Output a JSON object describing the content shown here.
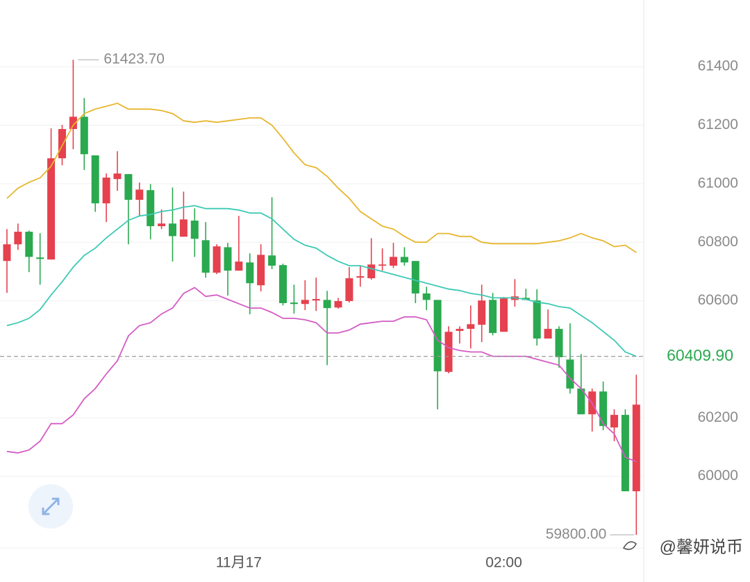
{
  "chart_data": {
    "type": "candlestick",
    "categories": [
      null,
      null,
      null,
      null,
      null,
      null,
      null,
      null,
      null,
      null,
      null,
      null,
      null,
      null,
      null,
      null,
      null,
      null,
      null,
      null,
      null,
      "11月17",
      null,
      null,
      null,
      null,
      null,
      null,
      null,
      null,
      null,
      null,
      null,
      null,
      null,
      null,
      null,
      null,
      null,
      null,
      null,
      null,
      null,
      null,
      null,
      "02:00",
      null,
      null,
      null,
      null,
      null,
      null,
      null,
      null,
      null,
      null,
      null,
      null
    ],
    "open": [
      60736,
      60793,
      60836,
      60748,
      60741,
      61087,
      61187,
      61229,
      61097,
      60933,
      61016,
      61033,
      60945,
      60978,
      60855,
      60864,
      60819,
      60874,
      60807,
      60696,
      60783,
      60703,
      60731,
      60653,
      60755,
      60722,
      60594,
      60589,
      60601,
      60603,
      60577,
      60599,
      60679,
      60677,
      60720,
      60720,
      60750,
      60736,
      60625,
      60603,
      60357,
      60497,
      60504,
      60518,
      60603,
      60494,
      60603,
      60610,
      60601,
      60471,
      60504,
      60399,
      60300,
      60212,
      60290,
      60167,
      60210,
      59949
    ],
    "high": [
      60845,
      60864,
      60840,
      60831,
      61189,
      61201,
      61423.7,
      61293,
      61097,
      61035,
      61111,
      61033,
      61004,
      60999,
      60912,
      60987,
      60973,
      60916,
      60869,
      60793,
      60798,
      60890,
      60762,
      60793,
      60954,
      60727,
      60655,
      60670,
      60679,
      60634,
      60610,
      60715,
      60720,
      60814,
      60779,
      60798,
      60783,
      60736,
      60648,
      60603,
      60513,
      60513,
      60584,
      60655,
      60627,
      60613,
      60674,
      60641,
      60639,
      60570,
      60513,
      60523,
      60418,
      60300,
      60324,
      60229,
      60229,
      60347
    ],
    "low": [
      60627,
      60774,
      60698,
      60655,
      60741,
      61063,
      61118,
      61047,
      60904,
      60869,
      60976,
      60793,
      60888,
      60810,
      60845,
      60734,
      60819,
      60750,
      60679,
      60691,
      60618,
      60703,
      60554,
      60632,
      60708,
      60584,
      60556,
      60568,
      60565,
      60380,
      60573,
      60594,
      60648,
      60672,
      60703,
      60712,
      60720,
      60592,
      60568,
      60229,
      60352,
      60454,
      60437,
      60459,
      60482,
      60494,
      60580,
      60603,
      60447,
      60471,
      60371,
      60283,
      60212,
      60153,
      60158,
      60120,
      59949,
      59800
    ],
    "close": [
      60793,
      60836,
      60750,
      60743,
      61087,
      61187,
      61229,
      61101,
      60933,
      61021,
      61035,
      60945,
      60980,
      60855,
      60864,
      60821,
      60878,
      60812,
      60696,
      60786,
      60703,
      60734,
      60660,
      60757,
      60720,
      60592,
      60589,
      60603,
      60606,
      60575,
      60599,
      60677,
      60684,
      60724,
      60724,
      60750,
      60731,
      60625,
      60603,
      60359,
      60494,
      60504,
      60520,
      60601,
      60490,
      60608,
      60615,
      60603,
      60471,
      60504,
      60407,
      60300,
      60212,
      60290,
      60172,
      60210,
      59949,
      60245
    ],
    "up_color": "#e5414e",
    "down_color": "#2aa94f",
    "lines": [
      {
        "color": "#e8b52c",
        "values": [
          60950,
          60985,
          61005,
          61020,
          61060,
          61130,
          61200,
          61240,
          61255,
          61265,
          61275,
          61255,
          61255,
          61255,
          61250,
          61240,
          61215,
          61210,
          61215,
          61210,
          61215,
          61220,
          61225,
          61225,
          61200,
          61155,
          61105,
          61065,
          61055,
          61025,
          60985,
          60950,
          60905,
          60880,
          60855,
          60845,
          60820,
          60800,
          60800,
          60830,
          60830,
          60820,
          60820,
          60800,
          60795,
          60795,
          60795,
          60795,
          60795,
          60800,
          60805,
          60815,
          60830,
          60815,
          60805,
          60785,
          60790,
          60765
        ]
      },
      {
        "color": "#3cc9b4",
        "values": [
          60515,
          60525,
          60540,
          60570,
          60620,
          60665,
          60715,
          60755,
          60780,
          60815,
          60845,
          60875,
          60890,
          60895,
          60905,
          60910,
          60920,
          60925,
          60915,
          60915,
          60915,
          60910,
          60900,
          60900,
          60880,
          60845,
          60810,
          60790,
          60780,
          60755,
          60735,
          60720,
          60720,
          60710,
          60700,
          60690,
          60680,
          60670,
          60660,
          60650,
          60640,
          60635,
          60625,
          60620,
          60610,
          60610,
          60610,
          60605,
          60595,
          60590,
          60580,
          60575,
          60550,
          60525,
          60495,
          60465,
          60425,
          60410
        ]
      },
      {
        "color": "#d45cc4",
        "values": [
          60085,
          60080,
          60090,
          60120,
          60180,
          60180,
          60210,
          60265,
          60300,
          60350,
          60395,
          60480,
          60515,
          60525,
          60555,
          60575,
          60625,
          60645,
          60615,
          60620,
          60605,
          60590,
          60575,
          60575,
          60560,
          60540,
          60540,
          60535,
          60525,
          60490,
          60490,
          60500,
          60520,
          60525,
          60530,
          60530,
          60545,
          60545,
          60535,
          60465,
          60440,
          60430,
          60425,
          60425,
          60410,
          60410,
          60410,
          60410,
          60400,
          60390,
          60380,
          60335,
          60300,
          60250,
          60180,
          60145,
          60065,
          60050
        ]
      }
    ],
    "ylim": [
      59755,
      61628
    ],
    "yticks": [
      60000,
      60200,
      60400,
      60600,
      60800,
      61000,
      61200,
      61400
    ],
    "max_marker": {
      "value": 61423.7,
      "label": "61423.70"
    },
    "min_marker": {
      "value": 59800,
      "label": "59800.00"
    },
    "last_price": {
      "value": 60409.9,
      "label": "60409.90"
    },
    "watermark": "@馨妍说币",
    "grid": true
  }
}
